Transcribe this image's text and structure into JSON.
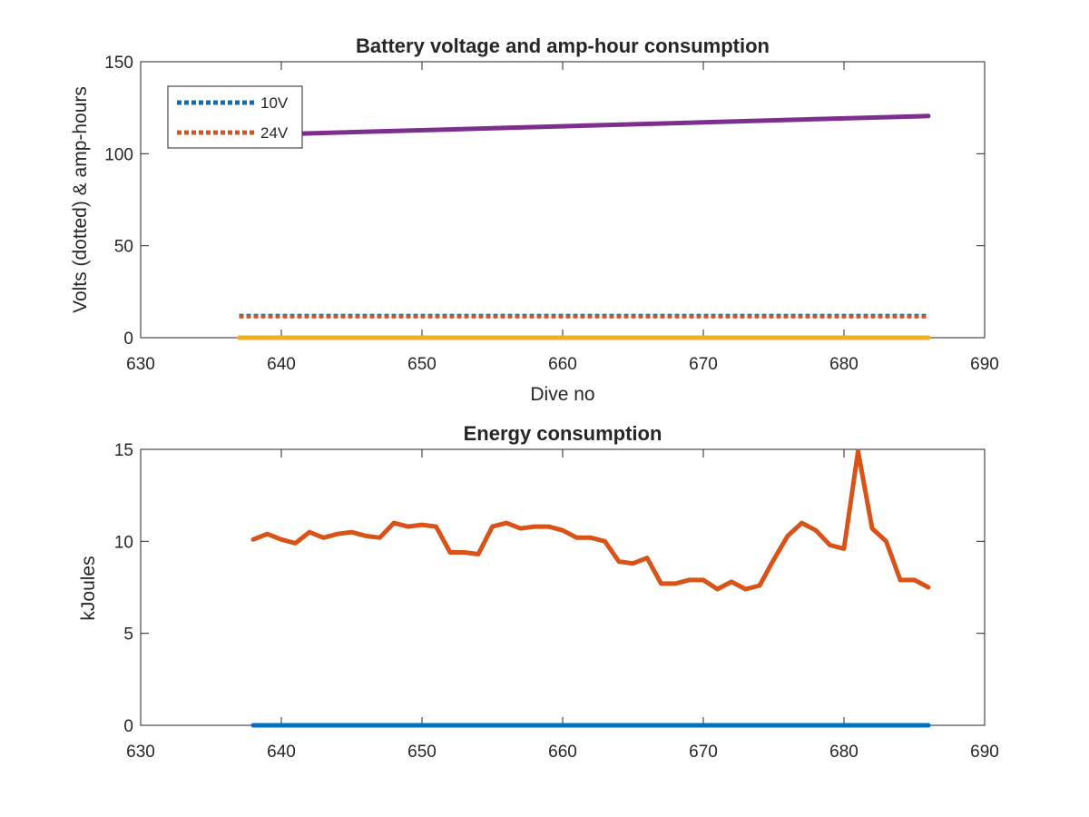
{
  "colors": {
    "blue": "#0072BD",
    "orange": "#D95319",
    "yellow": "#EDB120",
    "purple": "#7E2F8E",
    "axis": "#262626",
    "background": "#ffffff"
  },
  "chart_data": [
    {
      "type": "line",
      "title": "Battery voltage and amp-hour consumption",
      "xlabel": "Dive no",
      "ylabel": "Volts (dotted) & amp-hours",
      "xlim": [
        630,
        690
      ],
      "ylim": [
        0,
        150
      ],
      "xticks": [
        "630",
        "640",
        "650",
        "660",
        "670",
        "680",
        "690"
      ],
      "yticks": [
        "0",
        "50",
        "100",
        "150"
      ],
      "grid": false,
      "legend": {
        "placement": "top-left",
        "entries": [
          "10V",
          "24V"
        ]
      },
      "series": [
        {
          "name": "10V",
          "color": "#0072BD",
          "style": "dotted",
          "x": [
            637,
            645,
            655,
            665,
            675,
            686
          ],
          "y": [
            12,
            12,
            12,
            12,
            12,
            12
          ]
        },
        {
          "name": "24V",
          "color": "#D95319",
          "style": "dotted",
          "x": [
            637,
            645,
            655,
            665,
            675,
            686
          ],
          "y": [
            11.5,
            11.5,
            11.5,
            11.5,
            11.5,
            11.5
          ]
        },
        {
          "color": "#EDB120",
          "style": "solid",
          "x": [
            637,
            686
          ],
          "y": [
            0,
            0
          ]
        },
        {
          "color": "#7E2F8E",
          "style": "solid",
          "x": [
            637,
            686
          ],
          "y": [
            110,
            120.5
          ]
        }
      ]
    },
    {
      "type": "line",
      "title": "Energy consumption",
      "xlabel": "",
      "ylabel": "kJoules",
      "xlim": [
        630,
        690
      ],
      "ylim": [
        0,
        15
      ],
      "xticks": [
        "630",
        "640",
        "650",
        "660",
        "670",
        "680",
        "690"
      ],
      "yticks": [
        "0",
        "5",
        "10",
        "15"
      ],
      "grid": false,
      "series": [
        {
          "color": "#D95319",
          "style": "solid",
          "x": [
            638,
            639,
            640,
            641,
            642,
            643,
            644,
            645,
            646,
            647,
            648,
            649,
            650,
            651,
            652,
            653,
            654,
            655,
            656,
            657,
            658,
            659,
            660,
            661,
            662,
            663,
            664,
            665,
            666,
            667,
            668,
            669,
            670,
            671,
            672,
            673,
            674,
            675,
            676,
            677,
            678,
            679,
            680,
            681,
            682,
            683,
            684,
            685,
            686
          ],
          "y": [
            10.1,
            10.4,
            10.1,
            9.9,
            10.5,
            10.2,
            10.4,
            10.5,
            10.3,
            10.2,
            11.0,
            10.8,
            10.9,
            10.8,
            9.4,
            9.4,
            9.3,
            10.8,
            11.0,
            10.7,
            10.8,
            10.8,
            10.6,
            10.2,
            10.2,
            10.0,
            8.9,
            8.8,
            9.1,
            7.7,
            7.7,
            7.9,
            7.9,
            7.4,
            7.8,
            7.4,
            7.6,
            9.0,
            10.3,
            11.0,
            10.6,
            9.8,
            9.6,
            14.9,
            10.7,
            10.0,
            7.9,
            7.9,
            7.5
          ]
        },
        {
          "color": "#0072BD",
          "style": "solid",
          "x": [
            638,
            686
          ],
          "y": [
            0,
            0
          ]
        }
      ]
    }
  ]
}
